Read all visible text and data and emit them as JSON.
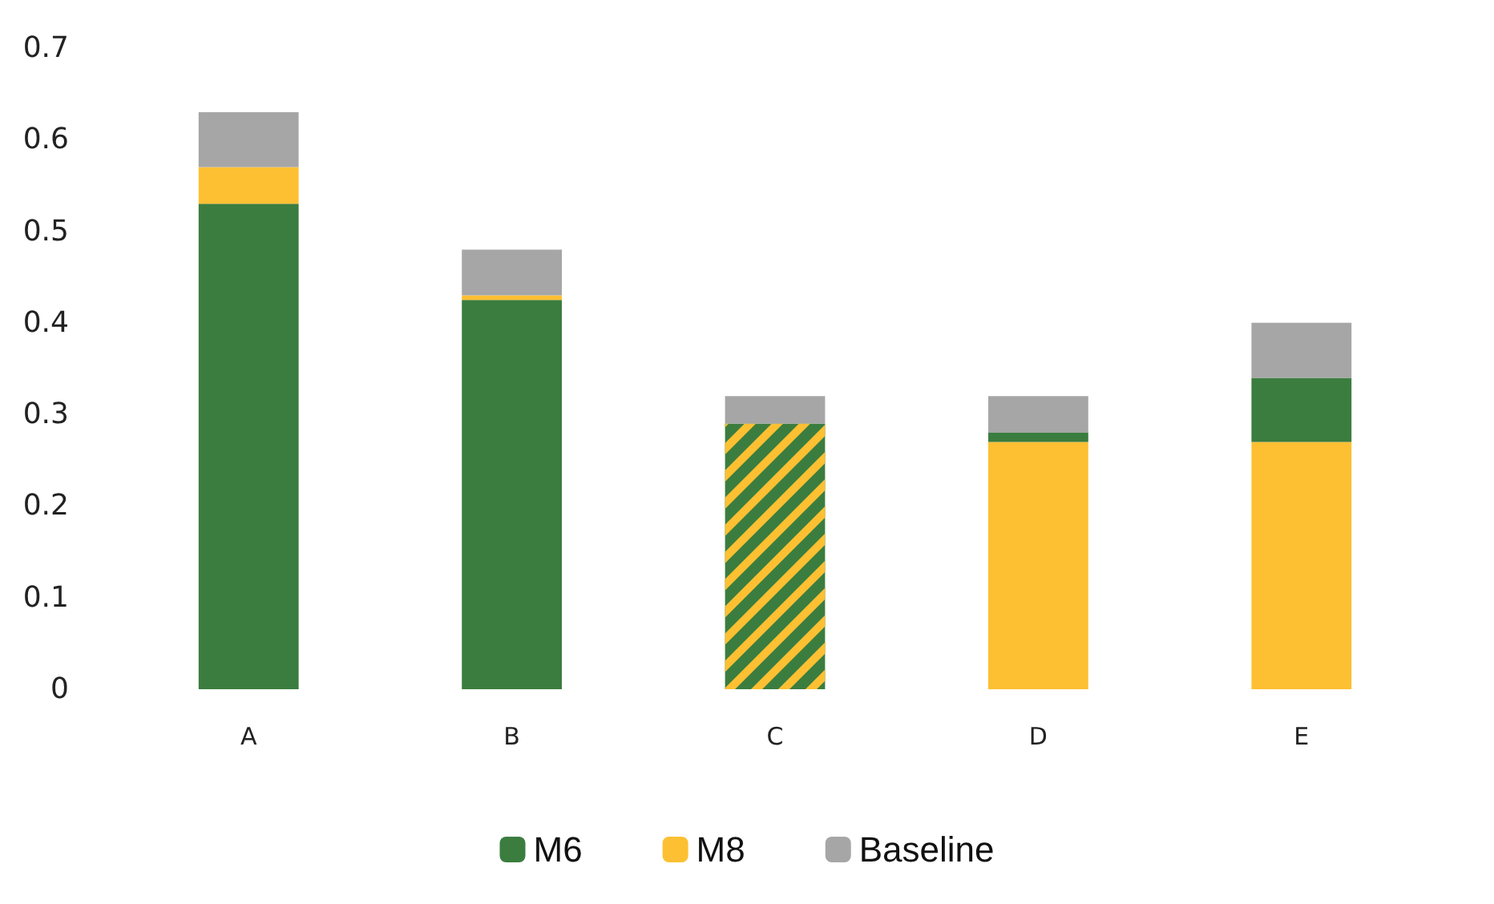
{
  "chart_data": {
    "type": "bar",
    "stacked": true,
    "categories": [
      "A",
      "B",
      "C",
      "D",
      "E"
    ],
    "series": [
      {
        "name": "M6",
        "color": "#3b7d3f",
        "values": [
          0.53,
          0.425,
          null,
          null,
          null
        ]
      },
      {
        "name": "M8",
        "color": "#fdc032",
        "values": [
          0.04,
          0.005,
          null,
          0.27,
          0.27
        ]
      },
      {
        "color": "#3b7d3f",
        "values": [
          null,
          null,
          null,
          0.01,
          0.07
        ]
      },
      {
        "color": "#3b7d3f",
        "values": [
          null,
          null,
          0.29,
          null,
          null
        ]
      },
      {
        "name": "Baseline",
        "color": "#a6a6a6",
        "values": [
          0.06,
          0.05,
          0.03,
          0.04,
          0.06
        ]
      }
    ],
    "ylim": [
      0,
      0.7
    ],
    "yticks": [
      0,
      0.1,
      0.2,
      0.3,
      0.4,
      0.5,
      0.6,
      0.7
    ],
    "grid": false,
    "legend": "bottom"
  }
}
